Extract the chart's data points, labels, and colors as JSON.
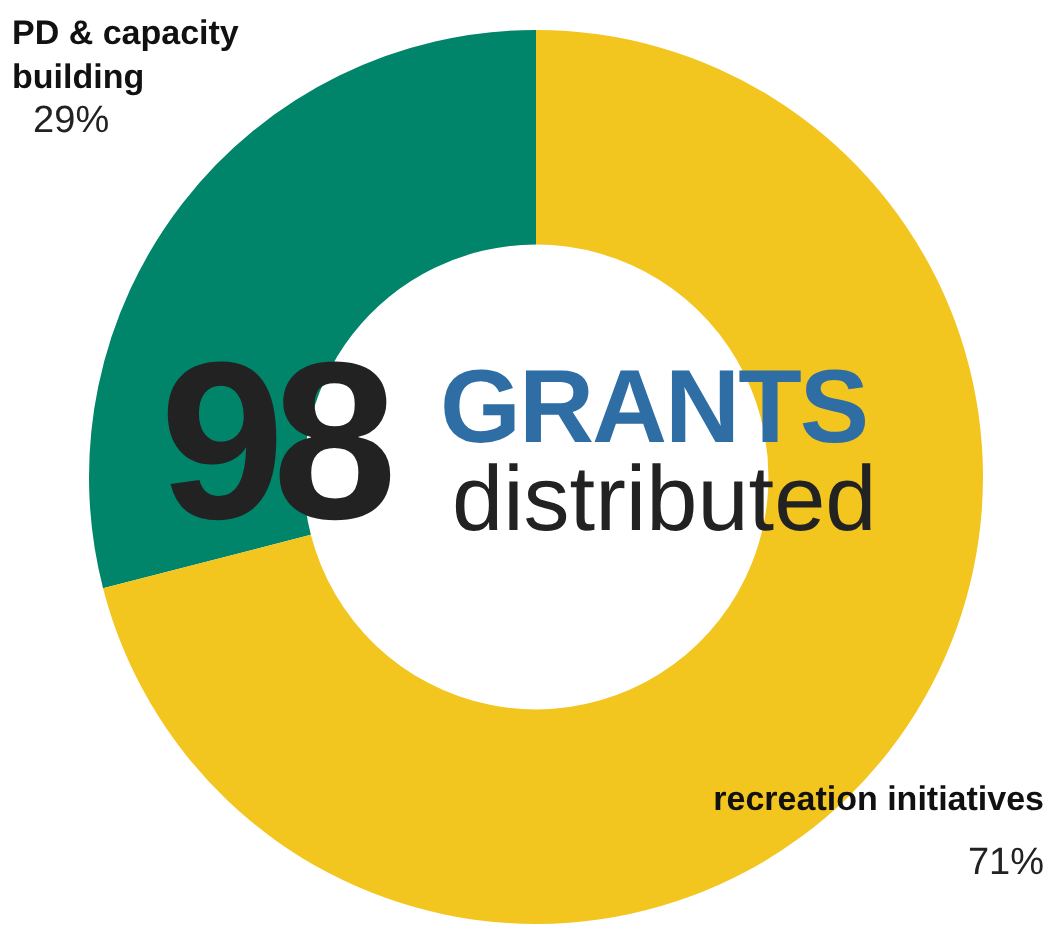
{
  "chart_data": {
    "type": "donut",
    "categories": [
      "PD & capacity building",
      "recreation initiatives"
    ],
    "values": [
      29,
      71
    ],
    "colors": [
      "#00856a",
      "#f3c51f"
    ],
    "value_labels": [
      "29%",
      "71%"
    ],
    "legend": false,
    "annotations": [
      "98",
      "GRANTS",
      "distributed"
    ]
  }
}
